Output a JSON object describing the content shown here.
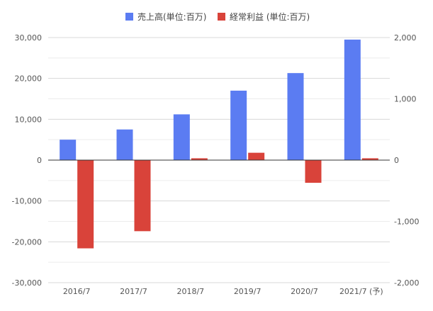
{
  "chart_data": {
    "type": "bar",
    "categories": [
      "2016/7",
      "2017/7",
      "2018/7",
      "2019/7",
      "2020/7",
      "2021/7 (予)"
    ],
    "series": [
      {
        "name": "売上高(単位:百万)",
        "axis": "left",
        "color": "#5b7cf2",
        "values": [
          5000,
          7500,
          11200,
          17000,
          21300,
          29500
        ]
      },
      {
        "name": "経常利益 (単位:百万)",
        "axis": "right",
        "color": "#d9433a",
        "values": [
          -1440,
          -1160,
          30,
          120,
          -370,
          30
        ]
      }
    ],
    "y_left": {
      "ylim": [
        -30000,
        30000
      ],
      "ticks": [
        30000,
        20000,
        10000,
        0,
        -10000,
        -20000,
        -30000
      ],
      "tick_labels": [
        "30,000",
        "20,000",
        "10,000",
        "0",
        "-10,000",
        "-20,000",
        "-30,000"
      ]
    },
    "y_right": {
      "ylim": [
        -2000,
        2000
      ],
      "ticks": [
        2000,
        1000,
        0,
        -1000,
        -2000
      ],
      "tick_labels": [
        "2,000",
        "1,000",
        "0",
        "-1,000",
        "-2,000"
      ]
    },
    "legend_position": "top",
    "grid": true,
    "gridline_color": "#e2e2e2",
    "zero_line_color": "#333333"
  }
}
